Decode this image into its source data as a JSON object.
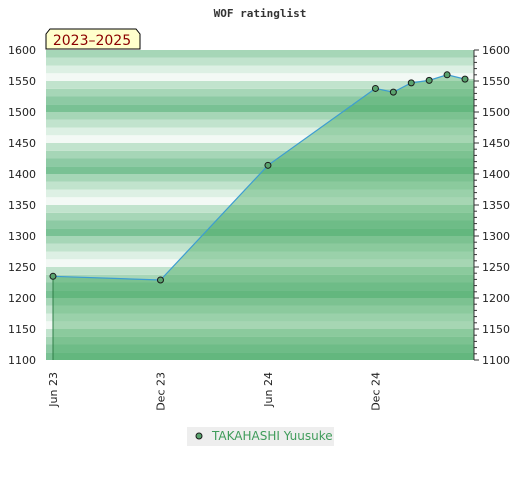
{
  "chart_data": {
    "type": "area",
    "title": "WOF ratinglist",
    "period_badge": "2023–2025",
    "ylim": [
      1100,
      1600
    ],
    "yticks": [
      1100,
      1150,
      1200,
      1250,
      1300,
      1350,
      1400,
      1450,
      1500,
      1550,
      1600
    ],
    "x_tick_labels": [
      "Jun 23",
      "Dec 23",
      "Jun 24",
      "Dec 24"
    ],
    "x_tick_dates": [
      "2023-06",
      "2023-12",
      "2024-06",
      "2024-12"
    ],
    "xlim": [
      "2023-06",
      "2025-05"
    ],
    "series": [
      {
        "name": "TAKAHASHI Yuusuke",
        "color": "#3d9dd1",
        "marker_color": "#5aa36e",
        "points": [
          {
            "x": "2023-06",
            "y": 1235
          },
          {
            "x": "2023-12",
            "y": 1229
          },
          {
            "x": "2024-06",
            "y": 1414
          },
          {
            "x": "2024-12",
            "y": 1538
          },
          {
            "x": "2025-01",
            "y": 1532
          },
          {
            "x": "2025-02",
            "y": 1547
          },
          {
            "x": "2025-03",
            "y": 1551
          },
          {
            "x": "2025-04",
            "y": 1560
          },
          {
            "x": "2025-05",
            "y": 1553
          }
        ]
      }
    ],
    "legend_position": "bottom-center",
    "grid": true
  }
}
